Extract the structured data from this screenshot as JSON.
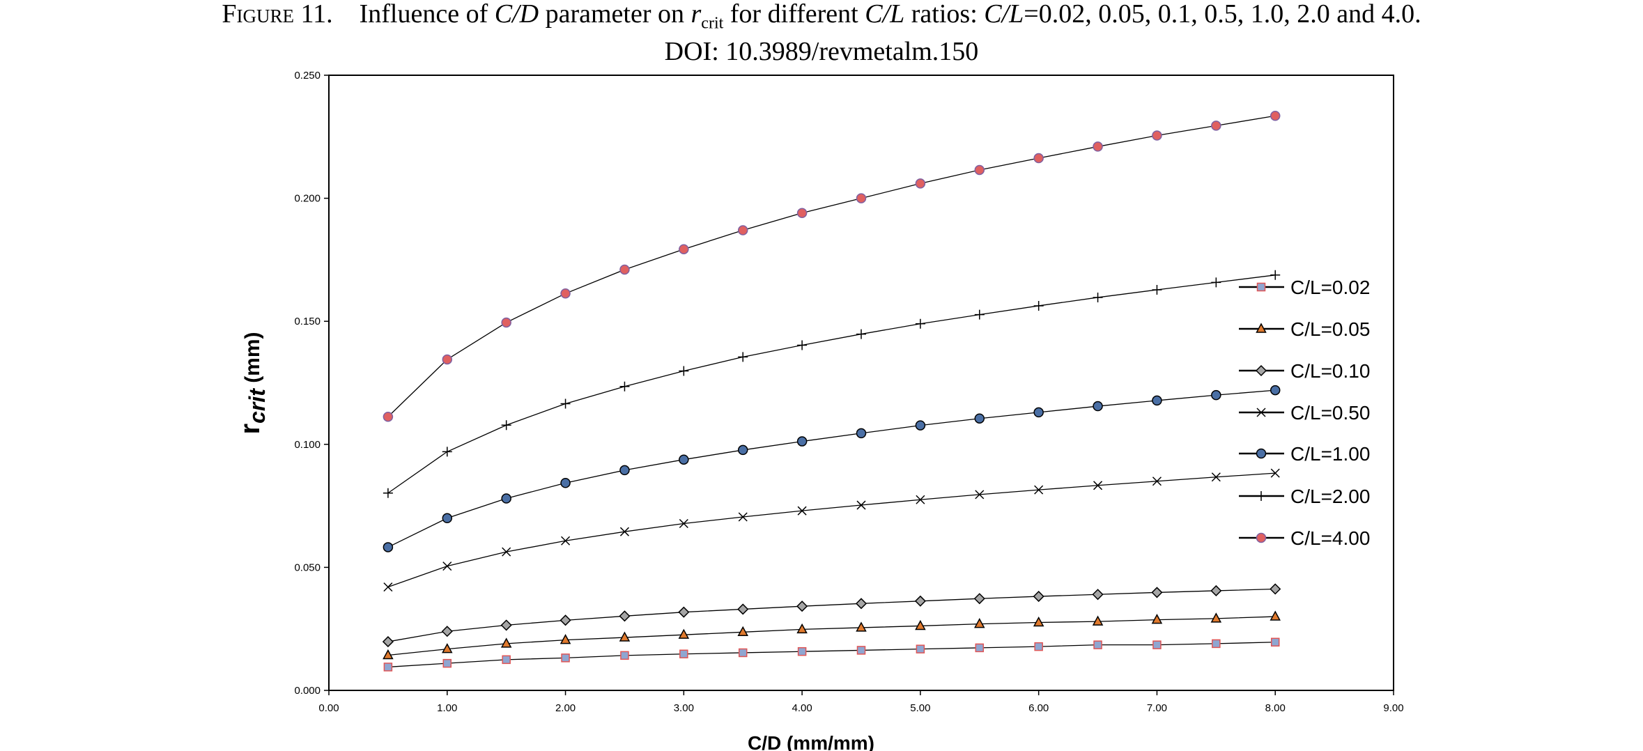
{
  "caption": {
    "label": "Figure 11.",
    "t1": "Influence of ",
    "t2": "C/D",
    "t3": " parameter on ",
    "t4": "r",
    "t5": "crit",
    "t6": " for different ",
    "t7": "C/L",
    "t8": " ratios: ",
    "t9": "C/L",
    "t10": "=0.02, 0.05, 0.1, 0.5, 1.0, 2.0 and 4.0.",
    "doi": "DOI: 10.3989/revmetalm.150"
  },
  "chart_data": {
    "type": "line",
    "xlabel": "C/D (mm/mm)",
    "ylabel_main": "r",
    "ylabel_sub": "crit",
    "ylabel_unit": " (mm)",
    "xlim": [
      0,
      9
    ],
    "ylim": [
      0,
      0.25
    ],
    "xticks": [
      "0.00",
      "1.00",
      "2.00",
      "3.00",
      "4.00",
      "5.00",
      "6.00",
      "7.00",
      "8.00",
      "9.00"
    ],
    "yticks": [
      "0.000",
      "0.050",
      "0.100",
      "0.150",
      "0.200",
      "0.250"
    ],
    "grid": false,
    "legend_position": "right",
    "x": [
      0.5,
      1.0,
      1.5,
      2.0,
      2.5,
      3.0,
      3.5,
      4.0,
      4.5,
      5.0,
      5.5,
      6.0,
      6.5,
      7.0,
      7.5,
      8.0
    ],
    "series": [
      {
        "name": "C/L=0.02",
        "marker": "square",
        "fill": "#8fa6d1",
        "stroke": "#e05555",
        "values": [
          0.0095,
          0.011,
          0.0125,
          0.0132,
          0.0142,
          0.0148,
          0.0153,
          0.0158,
          0.0163,
          0.0168,
          0.0173,
          0.0178,
          0.0185,
          0.0185,
          0.019,
          0.0196
        ]
      },
      {
        "name": "C/L=0.05",
        "marker": "triangle",
        "fill": "#e07a2e",
        "stroke": "#000000",
        "values": [
          0.0143,
          0.0168,
          0.019,
          0.0205,
          0.0215,
          0.0226,
          0.0237,
          0.0248,
          0.0255,
          0.0262,
          0.027,
          0.0276,
          0.028,
          0.0287,
          0.0292,
          0.03
        ]
      },
      {
        "name": "C/L=0.10",
        "marker": "diamond",
        "fill": "#a5a5a5",
        "stroke": "#000000",
        "values": [
          0.0198,
          0.024,
          0.0265,
          0.0285,
          0.0302,
          0.0318,
          0.033,
          0.0342,
          0.0353,
          0.0363,
          0.0373,
          0.0382,
          0.039,
          0.0398,
          0.0405,
          0.0412
        ]
      },
      {
        "name": "C/L=0.50",
        "marker": "x",
        "fill": "none",
        "stroke": "#000000",
        "values": [
          0.042,
          0.0505,
          0.0563,
          0.0608,
          0.0645,
          0.0678,
          0.0705,
          0.073,
          0.0753,
          0.0775,
          0.0796,
          0.0815,
          0.0833,
          0.085,
          0.0867,
          0.0883
        ]
      },
      {
        "name": "C/L=1.00",
        "marker": "circle",
        "fill": "#4a6fa5",
        "stroke": "#000000",
        "values": [
          0.0582,
          0.07,
          0.078,
          0.0843,
          0.0895,
          0.0938,
          0.0977,
          0.1012,
          0.1045,
          0.1077,
          0.1105,
          0.113,
          0.1155,
          0.1178,
          0.12,
          0.122
        ]
      },
      {
        "name": "C/L=2.00",
        "marker": "plus",
        "fill": "none",
        "stroke": "#000000",
        "values": [
          0.0802,
          0.097,
          0.1078,
          0.1165,
          0.1235,
          0.1298,
          0.1355,
          0.1403,
          0.1448,
          0.149,
          0.1527,
          0.1563,
          0.1597,
          0.1628,
          0.1658,
          0.1688
        ]
      },
      {
        "name": "C/L=4.00",
        "marker": "circle",
        "fill": "#e06060",
        "stroke": "#7f5fa0",
        "values": [
          0.1112,
          0.1345,
          0.1495,
          0.1613,
          0.171,
          0.1793,
          0.187,
          0.194,
          0.2,
          0.206,
          0.2115,
          0.2163,
          0.221,
          0.2255,
          0.2295,
          0.2335
        ]
      }
    ]
  }
}
